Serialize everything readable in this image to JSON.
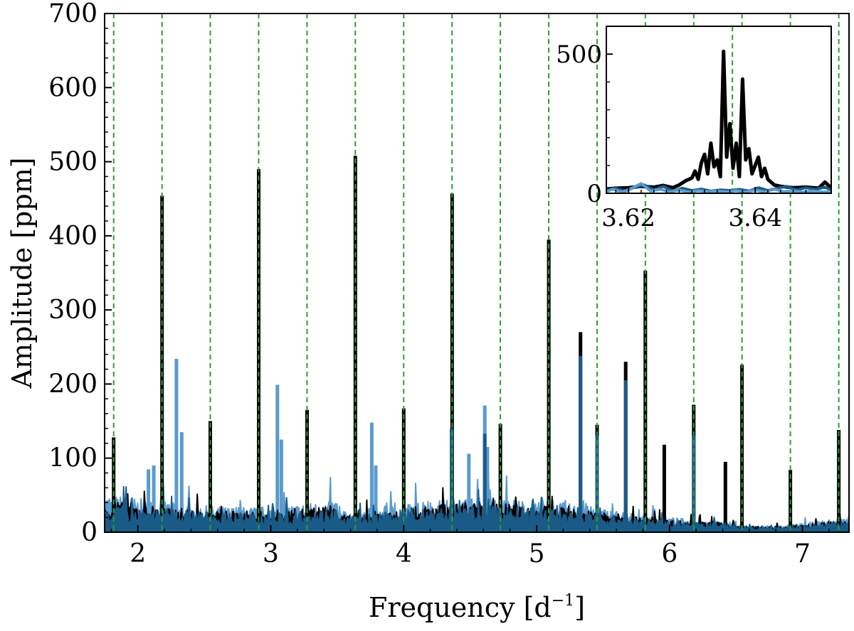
{
  "chart_data": [
    {
      "type": "line",
      "title": "",
      "xlabel": "Frequency [d",
      "xlabel_sup": "−1",
      "xlabel_close": "]",
      "ylabel": "Amplitude [ppm]",
      "xlim": [
        1.75,
        7.35
      ],
      "ylim": [
        0,
        700
      ],
      "xticks": [
        2,
        3,
        4,
        5,
        6,
        7
      ],
      "yticks": [
        0,
        100,
        200,
        300,
        400,
        500,
        600,
        700
      ],
      "xtick_labels": [
        "2",
        "3",
        "4",
        "5",
        "6",
        "7"
      ],
      "ytick_labels": [
        "0",
        "100",
        "200",
        "300",
        "400",
        "500",
        "600",
        "700"
      ],
      "grid": false,
      "legend": "none",
      "colors": {
        "black_series": "#000000",
        "light_series": "#5b9bcd",
        "dark_series": "#1a5a87",
        "reference_lines": "#2ca02c"
      },
      "reference_lines": [
        1.818,
        2.182,
        2.545,
        2.909,
        3.273,
        3.636,
        4.0,
        4.364,
        4.727,
        5.091,
        5.455,
        5.818,
        6.182,
        6.545,
        6.909,
        7.273
      ],
      "series": [
        {
          "color_key": "black_series",
          "peaks": [
            {
              "x": 1.818,
              "y": 128
            },
            {
              "x": 2.182,
              "y": 454
            },
            {
              "x": 2.545,
              "y": 150
            },
            {
              "x": 2.909,
              "y": 490
            },
            {
              "x": 3.273,
              "y": 165
            },
            {
              "x": 3.636,
              "y": 508
            },
            {
              "x": 4.0,
              "y": 167
            },
            {
              "x": 4.364,
              "y": 457
            },
            {
              "x": 4.727,
              "y": 146
            },
            {
              "x": 5.091,
              "y": 395
            },
            {
              "x": 5.33,
              "y": 270
            },
            {
              "x": 5.455,
              "y": 145
            },
            {
              "x": 5.67,
              "y": 230
            },
            {
              "x": 5.818,
              "y": 353
            },
            {
              "x": 5.96,
              "y": 118
            },
            {
              "x": 6.182,
              "y": 172
            },
            {
              "x": 6.42,
              "y": 95
            },
            {
              "x": 6.545,
              "y": 226
            },
            {
              "x": 6.909,
              "y": 84
            },
            {
              "x": 7.273,
              "y": 138
            }
          ]
        },
        {
          "color_key": "light_series",
          "peaks": [
            {
              "x": 2.29,
              "y": 234
            },
            {
              "x": 2.33,
              "y": 135
            },
            {
              "x": 3.05,
              "y": 199
            },
            {
              "x": 3.08,
              "y": 125
            },
            {
              "x": 3.76,
              "y": 148
            },
            {
              "x": 3.79,
              "y": 90
            },
            {
              "x": 4.61,
              "y": 171
            },
            {
              "x": 4.49,
              "y": 106
            },
            {
              "x": 4.63,
              "y": 115
            },
            {
              "x": 2.12,
              "y": 90
            },
            {
              "x": 2.08,
              "y": 85
            }
          ]
        },
        {
          "color_key": "dark_series",
          "peaks": [
            {
              "x": 5.33,
              "y": 238
            },
            {
              "x": 5.67,
              "y": 205
            },
            {
              "x": 5.455,
              "y": 130
            },
            {
              "x": 4.36,
              "y": 140
            },
            {
              "x": 4.61,
              "y": 133
            },
            {
              "x": 6.182,
              "y": 130
            }
          ]
        }
      ]
    },
    {
      "type": "line",
      "title": "",
      "xlim": [
        3.6165,
        3.652
      ],
      "ylim": [
        0,
        600
      ],
      "xticks": [
        3.62,
        3.64
      ],
      "yticks": [
        0,
        500
      ],
      "xtick_labels": [
        "3.62",
        "3.64"
      ],
      "ytick_labels": [
        "0",
        "500"
      ],
      "grid": false,
      "legend": "none",
      "reference_lines": [
        3.6364
      ],
      "series": [
        {
          "color_key": "black_series",
          "x": [
            3.6165,
            3.618,
            3.62,
            3.622,
            3.624,
            3.6255,
            3.627,
            3.628,
            3.629,
            3.63,
            3.6305,
            3.631,
            3.6315,
            3.632,
            3.6325,
            3.633,
            3.6335,
            3.634,
            3.6345,
            3.635,
            3.6355,
            3.636,
            3.6365,
            3.637,
            3.6375,
            3.638,
            3.6385,
            3.639,
            3.6395,
            3.64,
            3.6405,
            3.641,
            3.6415,
            3.642,
            3.643,
            3.644,
            3.646,
            3.648,
            3.65,
            3.651,
            3.652
          ],
          "y": [
            15,
            18,
            20,
            25,
            22,
            28,
            20,
            30,
            45,
            55,
            80,
            50,
            110,
            140,
            70,
            180,
            95,
            120,
            60,
            510,
            130,
            250,
            90,
            180,
            60,
            410,
            120,
            160,
            70,
            100,
            130,
            60,
            90,
            50,
            30,
            25,
            20,
            22,
            18,
            40,
            20
          ]
        },
        {
          "color_key": "dark_series",
          "x": [
            3.6165,
            3.618,
            3.6195,
            3.621,
            3.6225,
            3.624,
            3.6255,
            3.627,
            3.6285,
            3.63,
            3.6315,
            3.633,
            3.6345,
            3.636,
            3.6375,
            3.639,
            3.6405,
            3.642,
            3.6435,
            3.645,
            3.6465,
            3.648,
            3.6495,
            3.651,
            3.652
          ],
          "y": [
            10,
            18,
            8,
            22,
            30,
            12,
            25,
            8,
            18,
            10,
            15,
            8,
            12,
            10,
            14,
            8,
            20,
            10,
            18,
            25,
            12,
            20,
            14,
            22,
            12
          ]
        },
        {
          "color_key": "light_series",
          "x": [
            3.6165,
            3.6175,
            3.619,
            3.6205,
            3.622,
            3.6235,
            3.625,
            3.6265,
            3.628,
            3.6295,
            3.631,
            3.6325,
            3.634,
            3.6355,
            3.637,
            3.6385,
            3.64,
            3.6415,
            3.643,
            3.6445,
            3.646,
            3.6475,
            3.649,
            3.6505,
            3.652
          ],
          "y": [
            6,
            15,
            4,
            18,
            35,
            8,
            14,
            5,
            12,
            4,
            10,
            6,
            8,
            5,
            10,
            4,
            12,
            5,
            14,
            6,
            9,
            4,
            8,
            5,
            6
          ]
        }
      ]
    }
  ]
}
